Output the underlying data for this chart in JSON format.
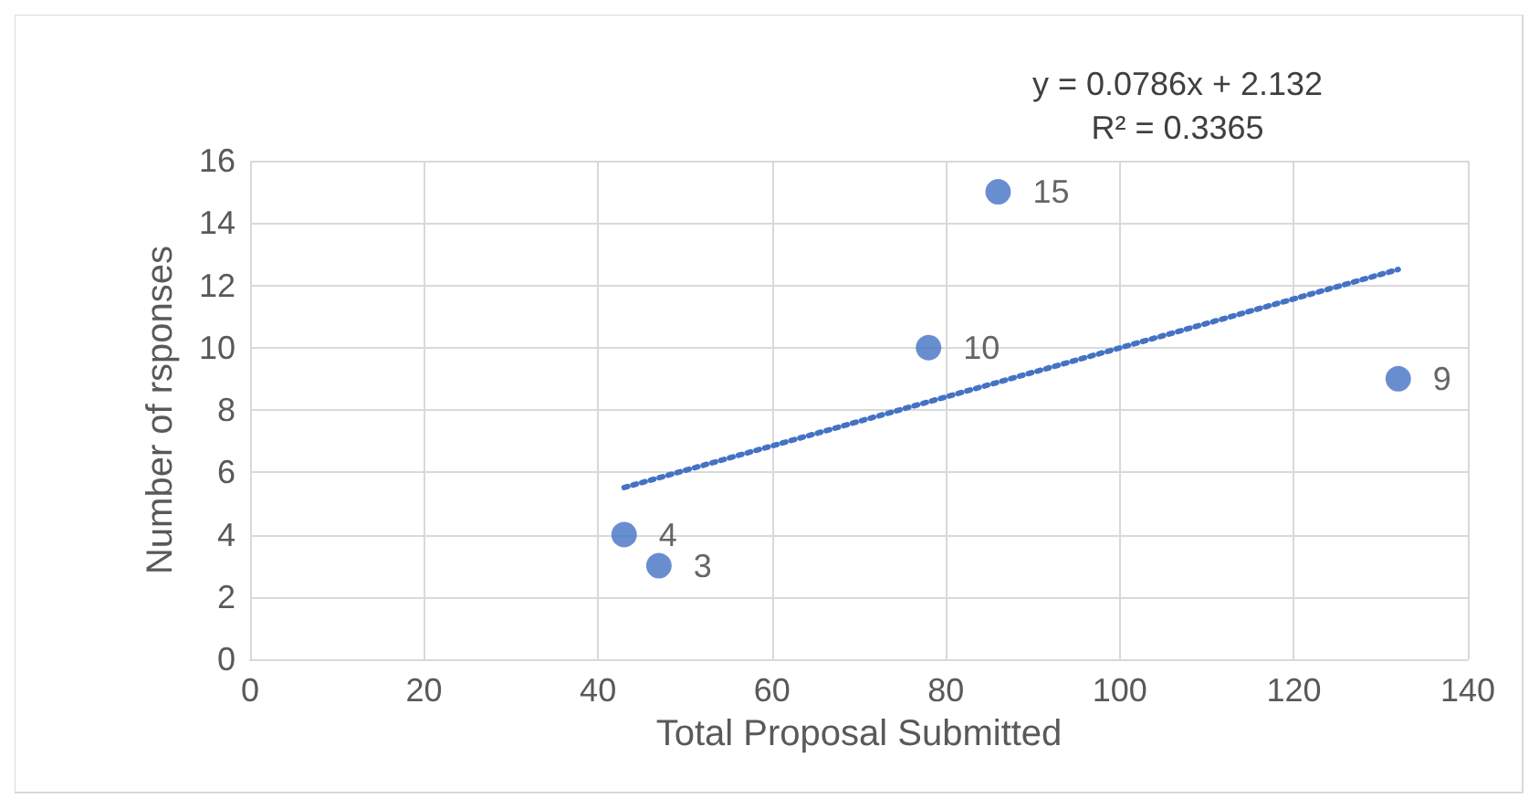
{
  "chart_data": {
    "type": "scatter",
    "xlabel": "Total Proposal Submitted",
    "ylabel": "Number of rsponses",
    "xlim": [
      0,
      140
    ],
    "xticks": [
      0,
      20,
      40,
      60,
      80,
      100,
      120,
      140
    ],
    "ylim": [
      0,
      16
    ],
    "yticks": [
      0,
      2,
      4,
      6,
      8,
      10,
      12,
      14,
      16
    ],
    "grid": true,
    "marker": "circle",
    "annotations": [
      "y = 0.0786x + 2.132",
      "R² = 0.3365"
    ],
    "series": [
      {
        "color": "#4472c4",
        "x": [
          43,
          47,
          78,
          86,
          132
        ],
        "values": [
          4,
          3,
          10,
          15,
          9
        ],
        "value_labels": [
          "4",
          "3",
          "10",
          "15",
          "9"
        ]
      },
      {
        "type": "line",
        "color": "#4472c4",
        "x": [
          43,
          132
        ],
        "values": [
          5.51,
          12.51
        ],
        "line_style": "dotted",
        "marker": "none"
      }
    ]
  }
}
